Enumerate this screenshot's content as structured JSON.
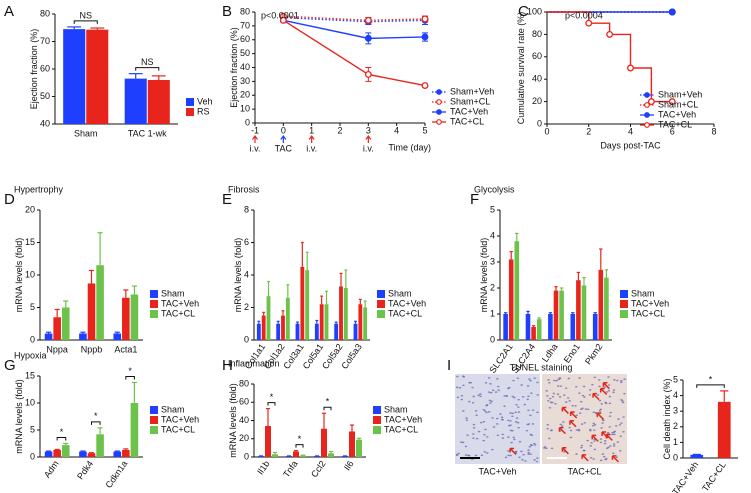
{
  "chart_data": [
    {
      "panel": "A",
      "type": "bar",
      "ylabel": "Ejection fraction (%)",
      "categories": [
        "Sham",
        "TAC 1-wk"
      ],
      "series": [
        {
          "name": "Veh",
          "color": "#1f3fff",
          "values": [
            74.5,
            56.5
          ],
          "errors": [
            0.8,
            1.8
          ]
        },
        {
          "name": "RS",
          "color": "#e8251c",
          "values": [
            74.3,
            56
          ],
          "errors": [
            0.6,
            1.5
          ]
        }
      ],
      "annotations": [
        "NS",
        "NS"
      ],
      "ylim": [
        40,
        80
      ],
      "yticks": [
        40,
        50,
        60,
        70,
        80
      ]
    },
    {
      "panel": "B",
      "type": "line",
      "ylabel": "Ejection fraction (%)",
      "xlabel": "Time (day)",
      "annotation": "p<0.0001",
      "x": [
        0,
        3,
        5
      ],
      "series": [
        {
          "name": "Sham+Veh",
          "color": "#1f3fff",
          "style": "dotted",
          "marker": "filled",
          "values": [
            76,
            73,
            74
          ],
          "errors": [
            1,
            2,
            3
          ]
        },
        {
          "name": "Sham+CL",
          "color": "#e8251c",
          "style": "dotted",
          "marker": "open",
          "values": [
            77,
            74,
            75
          ],
          "errors": [
            1,
            2,
            2
          ]
        },
        {
          "name": "TAC+Veh",
          "color": "#1f3fff",
          "style": "solid",
          "marker": "filled",
          "values": [
            74,
            61,
            62
          ],
          "errors": [
            1,
            4,
            3
          ]
        },
        {
          "name": "TAC+CL",
          "color": "#e8251c",
          "style": "solid",
          "marker": "open",
          "values": [
            74,
            35,
            27
          ],
          "errors": [
            1,
            5,
            1
          ]
        }
      ],
      "markers": [
        {
          "x": -1,
          "label": "i.v.",
          "color": "#e8251c"
        },
        {
          "x": 0,
          "label": "TAC",
          "color": "#1f3fff"
        },
        {
          "x": 1,
          "label": "i.v.",
          "color": "#e8251c"
        },
        {
          "x": 3,
          "label": "i.v.",
          "color": "#e8251c"
        }
      ],
      "xlim": [
        -1,
        5
      ],
      "xticks": [
        -1,
        0,
        1,
        2,
        3,
        4,
        5
      ],
      "ylim": [
        0,
        80
      ],
      "yticks": [
        0,
        10,
        20,
        30,
        40,
        50,
        60,
        70,
        80
      ]
    },
    {
      "panel": "C",
      "type": "step",
      "ylabel": "Cumulative survival rate (%)",
      "xlabel": "Days post-TAC",
      "annotation": "p<0.0004",
      "series": [
        {
          "name": "Sham+Veh",
          "color": "#1f3fff",
          "style": "dotted",
          "marker": "filled",
          "x": [
            0,
            6
          ],
          "values": [
            100,
            100
          ]
        },
        {
          "name": "Sham+CL",
          "color": "#e8251c",
          "style": "dotted",
          "marker": "open",
          "x": [
            0,
            6
          ],
          "values": [
            100,
            100
          ]
        },
        {
          "name": "TAC+Veh",
          "color": "#1f3fff",
          "style": "solid",
          "marker": "filled",
          "x": [
            0,
            6
          ],
          "values": [
            100,
            100
          ]
        },
        {
          "name": "TAC+CL",
          "color": "#e8251c",
          "style": "solid",
          "marker": "open",
          "x": [
            0,
            2,
            3,
            4,
            5,
            6
          ],
          "values": [
            100,
            90,
            80,
            50,
            20,
            20
          ]
        }
      ],
      "xlim": [
        0,
        8
      ],
      "xticks": [
        0,
        2,
        4,
        6,
        8
      ],
      "ylim": [
        0,
        100
      ],
      "yticks": [
        0,
        20,
        40,
        60,
        80,
        100
      ]
    },
    {
      "panel": "D",
      "type": "bar",
      "title": "Hypertrophy",
      "ylabel": "mRNA levels (fold)",
      "categories": [
        "Nppa",
        "Nppb",
        "Acta1"
      ],
      "series": [
        {
          "name": "Sham",
          "color": "#1f3fff",
          "values": [
            1,
            1,
            1
          ],
          "errors": [
            0.2,
            0.2,
            0.2
          ]
        },
        {
          "name": "TAC+Veh",
          "color": "#e8251c",
          "values": [
            3.5,
            8.7,
            6.5
          ],
          "errors": [
            1.2,
            2,
            1.2
          ]
        },
        {
          "name": "TAC+CL",
          "color": "#6cc24a",
          "values": [
            5,
            11.5,
            7
          ],
          "errors": [
            1,
            5,
            1.3
          ]
        }
      ],
      "ylim": [
        0,
        20
      ],
      "yticks": [
        0,
        5,
        10,
        15,
        20
      ]
    },
    {
      "panel": "E",
      "type": "bar",
      "title": "Fibrosis",
      "ylabel": "mRNA levels (fold)",
      "rotate_labels": true,
      "categories": [
        "Col1a1",
        "Col1a2",
        "Col3a1",
        "Col5a1",
        "Col5a2",
        "Col5a3"
      ],
      "series": [
        {
          "name": "Sham",
          "color": "#1f3fff",
          "values": [
            1,
            1,
            1,
            1,
            1,
            1
          ],
          "errors": [
            0.15,
            0.15,
            0.1,
            0.2,
            0.1,
            0.15
          ]
        },
        {
          "name": "TAC+Veh",
          "color": "#e8251c",
          "values": [
            1.5,
            1.5,
            4.5,
            2.2,
            3.3,
            2.2
          ],
          "errors": [
            0.2,
            0.3,
            1.5,
            0.5,
            0.8,
            0.3
          ]
        },
        {
          "name": "TAC+CL",
          "color": "#6cc24a",
          "values": [
            2.7,
            2.6,
            4.3,
            2.2,
            3.2,
            2
          ],
          "errors": [
            0.9,
            0.8,
            1.1,
            0.8,
            1.1,
            0.4
          ]
        }
      ],
      "ylim": [
        0,
        8
      ],
      "yticks": [
        0,
        2,
        4,
        6,
        8
      ]
    },
    {
      "panel": "F",
      "type": "bar",
      "title": "Glycolysis",
      "ylabel": "mRNA levels (fold)",
      "rotate_labels": true,
      "categories": [
        "SLC2A1",
        "SLC2A4",
        "Ldha",
        "Eno1",
        "Pkm2"
      ],
      "series": [
        {
          "name": "Sham",
          "color": "#1f3fff",
          "values": [
            1,
            1,
            1,
            1,
            1
          ],
          "errors": [
            0.05,
            0.1,
            0.05,
            0.05,
            0.05
          ]
        },
        {
          "name": "TAC+Veh",
          "color": "#e8251c",
          "values": [
            3.1,
            0.5,
            1.9,
            2.3,
            2.7
          ],
          "errors": [
            0.3,
            0.05,
            0.15,
            0.3,
            0.8
          ]
        },
        {
          "name": "TAC+CL",
          "color": "#6cc24a",
          "values": [
            3.8,
            0.8,
            1.9,
            2.1,
            2.4
          ],
          "errors": [
            0.3,
            0.05,
            0.1,
            0.3,
            0.3
          ]
        }
      ],
      "ylim": [
        0,
        5
      ],
      "yticks": [
        0,
        1,
        2,
        3,
        4,
        5
      ]
    },
    {
      "panel": "G",
      "type": "bar",
      "title": "Hypoxia",
      "ylabel": "mRNA levels (fold)",
      "rotate_labels": true,
      "categories": [
        "Adm",
        "Pdk4",
        "Cdkn1a"
      ],
      "series": [
        {
          "name": "Sham",
          "color": "#1f3fff",
          "values": [
            1,
            1,
            1
          ],
          "errors": [
            0.1,
            0.1,
            0.1
          ]
        },
        {
          "name": "TAC+Veh",
          "color": "#e8251c",
          "values": [
            1.3,
            0.7,
            1.3
          ],
          "errors": [
            0.1,
            0.1,
            0.2
          ]
        },
        {
          "name": "TAC+CL",
          "color": "#6cc24a",
          "values": [
            2.2,
            4.2,
            10
          ],
          "errors": [
            0.3,
            1.2,
            3.8
          ]
        }
      ],
      "annotations": [
        "*",
        "*",
        "*"
      ],
      "ylim": [
        0,
        15
      ],
      "yticks": [
        0,
        5,
        10,
        15
      ]
    },
    {
      "panel": "H",
      "type": "bar",
      "title": "Inflammation",
      "ylabel": "mRNA levels (fold)",
      "rotate_labels": true,
      "categories": [
        "Il1b",
        "Tnfa",
        "Ccl2",
        "Il6"
      ],
      "series": [
        {
          "name": "Sham",
          "color": "#1f3fff",
          "values": [
            1,
            1,
            1,
            1
          ],
          "errors": [
            0.2,
            0.2,
            0.2,
            0.2
          ]
        },
        {
          "name": "TAC+Veh",
          "color": "#e8251c",
          "values": [
            34,
            6,
            31,
            28
          ],
          "errors": [
            19,
            1,
            17,
            7
          ]
        },
        {
          "name": "TAC+CL",
          "color": "#6cc24a",
          "values": [
            3,
            1.5,
            4,
            19
          ],
          "errors": [
            2,
            0.5,
            2,
            1.5
          ]
        }
      ],
      "annotations": [
        "*",
        "*",
        "*",
        null
      ],
      "ylim": [
        0,
        80
      ],
      "yticks": [
        0,
        20,
        40,
        60,
        80
      ]
    },
    {
      "panel": "I",
      "type": "bar",
      "title": "TUNEL staining",
      "images": [
        "TAC+Veh",
        "TAC+CL"
      ],
      "ylabel": "Cell death index (%)",
      "rotate_labels": true,
      "categories": [
        "TAC+Veh",
        "TAC+CL"
      ],
      "values": [
        0.2,
        3.6
      ],
      "errors": [
        0.03,
        0.7
      ],
      "colors": [
        "#1f3fff",
        "#e8251c"
      ],
      "annotations": [
        "*"
      ],
      "ylim": [
        0,
        5
      ],
      "yticks": [
        0,
        1,
        2,
        3,
        4,
        5
      ]
    }
  ]
}
